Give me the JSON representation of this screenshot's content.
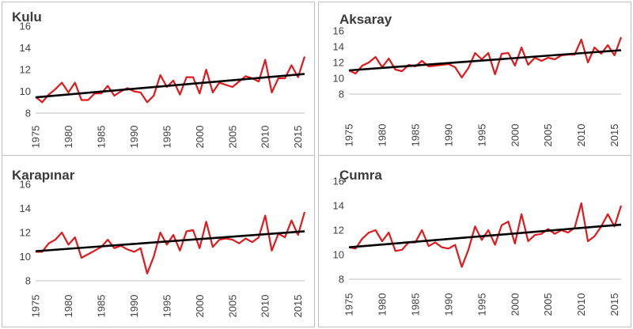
{
  "chart_data": [
    {
      "type": "line",
      "title": "Kulu",
      "ylim": [
        8,
        16
      ],
      "yticks": [
        8,
        10,
        12,
        14,
        16
      ],
      "xticks": [
        1975,
        1980,
        1985,
        1990,
        1995,
        2000,
        2005,
        2010,
        2015
      ],
      "x": [
        1975,
        1976,
        1977,
        1978,
        1979,
        1980,
        1981,
        1982,
        1983,
        1984,
        1985,
        1986,
        1987,
        1988,
        1989,
        1990,
        1991,
        1992,
        1993,
        1994,
        1995,
        1996,
        1997,
        1998,
        1999,
        2000,
        2001,
        2002,
        2003,
        2004,
        2005,
        2006,
        2007,
        2008,
        2009,
        2010,
        2011,
        2012,
        2013,
        2014,
        2015,
        2016
      ],
      "series": [
        {
          "values": [
            9.5,
            9.0,
            9.7,
            10.2,
            10.8,
            9.9,
            10.8,
            9.2,
            9.2,
            9.8,
            9.8,
            10.5,
            9.6,
            10.0,
            10.3,
            10.0,
            9.9,
            9.0,
            9.6,
            11.5,
            10.4,
            11.0,
            9.7,
            11.3,
            11.3,
            9.8,
            12.0,
            9.9,
            10.8,
            10.6,
            10.4,
            10.9,
            11.4,
            11.2,
            10.9,
            12.9,
            9.9,
            11.2,
            11.2,
            12.4,
            11.3,
            13.2
          ],
          "color": "#e0191c"
        },
        {
          "trend": [
            9.45,
            11.6
          ],
          "color": "#000000"
        }
      ]
    },
    {
      "type": "line",
      "title": "Aksaray",
      "ylim": [
        8,
        16
      ],
      "yticks": [
        8,
        10,
        12,
        14,
        16
      ],
      "xticks": [
        1975,
        1980,
        1985,
        1990,
        1995,
        2000,
        2005,
        2010,
        2015
      ],
      "x": [
        1975,
        1976,
        1977,
        1978,
        1979,
        1980,
        1981,
        1982,
        1983,
        1984,
        1985,
        1986,
        1987,
        1988,
        1989,
        1990,
        1991,
        1992,
        1993,
        1994,
        1995,
        1996,
        1997,
        1998,
        1999,
        2000,
        2001,
        2002,
        2003,
        2004,
        2005,
        2006,
        2007,
        2008,
        2009,
        2010,
        2011,
        2012,
        2013,
        2014,
        2015,
        2016
      ],
      "series": [
        {
          "values": [
            11.0,
            10.6,
            11.6,
            12.0,
            12.7,
            11.4,
            12.5,
            11.1,
            10.9,
            11.7,
            11.5,
            12.2,
            11.5,
            11.6,
            11.7,
            11.8,
            11.4,
            10.1,
            11.3,
            13.2,
            12.4,
            13.2,
            10.5,
            13.1,
            13.2,
            11.6,
            13.9,
            11.7,
            12.6,
            12.2,
            12.6,
            12.4,
            12.9,
            13.0,
            13.0,
            14.9,
            12.0,
            13.9,
            13.1,
            14.2,
            12.9,
            15.2
          ],
          "color": "#e0191c"
        },
        {
          "trend": [
            11.0,
            13.55
          ],
          "color": "#000000"
        }
      ]
    },
    {
      "type": "line",
      "title": "Karapınar",
      "ylim": [
        8,
        16
      ],
      "yticks": [
        8,
        10,
        12,
        14,
        16
      ],
      "xticks": [
        1975,
        1980,
        1985,
        1990,
        1995,
        2000,
        2005,
        2010,
        2015
      ],
      "x": [
        1975,
        1976,
        1977,
        1978,
        1979,
        1980,
        1981,
        1982,
        1983,
        1984,
        1985,
        1986,
        1987,
        1988,
        1989,
        1990,
        1991,
        1992,
        1993,
        1994,
        1995,
        1996,
        1997,
        1998,
        1999,
        2000,
        2001,
        2002,
        2003,
        2004,
        2005,
        2006,
        2007,
        2008,
        2009,
        2010,
        2011,
        2012,
        2013,
        2014,
        2015,
        2016
      ],
      "series": [
        {
          "values": [
            10.4,
            10.4,
            11.1,
            11.4,
            12.0,
            11.0,
            11.6,
            9.9,
            10.2,
            10.5,
            10.8,
            11.4,
            10.7,
            10.9,
            10.6,
            10.4,
            10.7,
            8.6,
            10.0,
            12.0,
            11.0,
            11.8,
            10.5,
            12.1,
            12.2,
            10.7,
            12.9,
            10.8,
            11.4,
            11.5,
            11.4,
            11.1,
            11.5,
            11.2,
            11.6,
            13.4,
            10.5,
            11.9,
            11.6,
            13.0,
            11.8,
            13.7
          ],
          "color": "#e0191c"
        },
        {
          "trend": [
            10.45,
            12.1
          ],
          "color": "#000000"
        }
      ]
    },
    {
      "type": "line",
      "title": "Çumra",
      "ylim": [
        8,
        16
      ],
      "yticks": [
        8,
        10,
        12,
        14,
        16
      ],
      "xticks": [
        1975,
        1980,
        1985,
        1990,
        1995,
        2000,
        2005,
        2010,
        2015
      ],
      "x": [
        1975,
        1976,
        1977,
        1978,
        1979,
        1980,
        1981,
        1982,
        1983,
        1984,
        1985,
        1986,
        1987,
        1988,
        1989,
        1990,
        1991,
        1992,
        1993,
        1994,
        1995,
        1996,
        1997,
        1998,
        1999,
        2000,
        2001,
        2002,
        2003,
        2004,
        2005,
        2006,
        2007,
        2008,
        2009,
        2010,
        2011,
        2012,
        2013,
        2014,
        2015,
        2016
      ],
      "series": [
        {
          "values": [
            10.6,
            10.5,
            11.3,
            11.8,
            12.0,
            11.1,
            11.8,
            10.3,
            10.4,
            11.0,
            11.0,
            12.0,
            10.7,
            11.0,
            10.6,
            10.5,
            10.8,
            9.0,
            10.4,
            12.3,
            11.2,
            12.0,
            10.8,
            12.4,
            12.7,
            10.9,
            13.3,
            11.1,
            11.6,
            11.7,
            12.1,
            11.7,
            12.0,
            11.8,
            12.2,
            14.2,
            11.1,
            11.5,
            12.3,
            13.3,
            12.3,
            14.0
          ],
          "color": "#e0191c"
        },
        {
          "trend": [
            10.6,
            12.45
          ],
          "color": "#000000"
        }
      ]
    }
  ]
}
